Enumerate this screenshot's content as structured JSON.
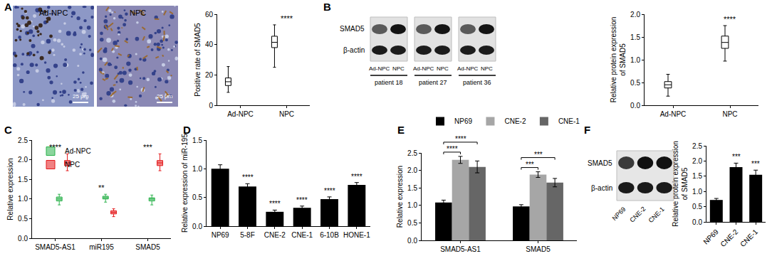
{
  "panel_labels": [
    "A",
    "B",
    "C",
    "D",
    "E",
    "F"
  ],
  "images": {
    "ihc": {
      "labels": [
        "Ad-NPC",
        "NPC"
      ],
      "scale_bar": "25 μm"
    },
    "blot_B": {
      "rows": [
        "SMAD5",
        "β-actin"
      ],
      "lanes": [
        "Ad-NPC",
        "NPC"
      ],
      "groups": [
        "patient 18",
        "patient 27",
        "patient 36"
      ]
    },
    "blot_F": {
      "rows": [
        "SMAD5",
        "β-actin"
      ],
      "lanes": [
        "NP69",
        "CNE-2",
        "CNE-1"
      ]
    }
  },
  "chart_data": [
    {
      "type": "box",
      "y_label": [
        "Positive rate of SMAD5"
      ],
      "categories": [
        "Ad-NPC",
        "NPC"
      ],
      "min": [
        8.5,
        25
      ],
      "q1": [
        13,
        38
      ],
      "median": [
        15.5,
        41.5
      ],
      "q3": [
        18,
        45.5
      ],
      "max": [
        25.5,
        53
      ],
      "color": "#000000",
      "ylim": [
        0,
        60
      ],
      "yticks": [
        0,
        20,
        40,
        60
      ],
      "grid": false,
      "annotations": [
        {
          "category": "NPC",
          "text": "****"
        }
      ]
    },
    {
      "type": "box",
      "y_label": [
        "Relative protein expression",
        "of SMAD5"
      ],
      "categories": [
        "Ad-NPC",
        "NPC"
      ],
      "min": [
        0.2,
        0.97
      ],
      "q1": [
        0.38,
        1.25
      ],
      "median": [
        0.45,
        1.38
      ],
      "q3": [
        0.52,
        1.52
      ],
      "max": [
        0.68,
        1.75
      ],
      "color": "#000000",
      "ylim": [
        0,
        2
      ],
      "yticks": [
        {
          "value": 0,
          "label": "0.0"
        },
        0.5,
        {
          "value": 1,
          "label": "1.0"
        },
        1.5,
        {
          "value": 2,
          "label": "2.0"
        }
      ],
      "grid": false,
      "annotations": [
        {
          "category": "NPC",
          "text": "****"
        }
      ]
    },
    {
      "type": "box",
      "y_label": [
        "Relative expression"
      ],
      "categories": [
        "SMAD5-AS1",
        "miR195",
        "SMAD5"
      ],
      "series": [
        {
          "name": "Ad-NPC",
          "color": "#2bb24c",
          "min": [
            0.85,
            0.92,
            0.85
          ],
          "q1": [
            0.95,
            1.0,
            0.95
          ],
          "median": [
            1.0,
            1.03,
            1.0
          ],
          "q3": [
            1.05,
            1.07,
            1.03
          ],
          "max": [
            1.12,
            1.12,
            1.1
          ]
        },
        {
          "name": "NPC",
          "color": "#e41a1c",
          "min": [
            1.72,
            0.55,
            1.72
          ],
          "q1": [
            1.85,
            0.62,
            1.85
          ],
          "median": [
            1.92,
            0.66,
            1.92
          ],
          "q3": [
            1.98,
            0.7,
            1.98
          ],
          "max": [
            2.15,
            0.75,
            2.15
          ]
        }
      ],
      "ylim": [
        0,
        2.5
      ],
      "yticks": [
        {
          "value": 0,
          "label": "0.0"
        },
        0.5,
        {
          "value": 1,
          "label": "1.0"
        },
        1.5,
        {
          "value": 2,
          "label": "2.0"
        },
        2.5
      ],
      "grid": false,
      "legend": "top left",
      "annotations": [
        {
          "category": "SMAD5-AS1",
          "text": "****"
        },
        {
          "category": "miR195",
          "text": "**"
        },
        {
          "category": "SMAD5",
          "text": "***"
        }
      ]
    },
    {
      "type": "bar",
      "y_label": [
        "Relative expression of miR-195"
      ],
      "categories": [
        "NP69",
        "5-8F",
        "CNE-2",
        "CNE-1",
        "6-10B",
        "HONE-1"
      ],
      "values": [
        1.0,
        0.69,
        0.25,
        0.32,
        0.47,
        0.72
      ],
      "errors": [
        0.07,
        0.05,
        0.03,
        0.03,
        0.04,
        0.04
      ],
      "color": "#000000",
      "ylim": [
        0,
        1.5
      ],
      "yticks": [
        {
          "value": 0,
          "label": "0.0"
        },
        0.5,
        {
          "value": 1,
          "label": "1.0"
        },
        1.5
      ],
      "grid": false,
      "annotations": [
        {
          "category": "5-8F",
          "text": "****"
        },
        {
          "category": "CNE-2",
          "text": "****"
        },
        {
          "category": "CNE-1",
          "text": "****"
        },
        {
          "category": "6-10B",
          "text": "****"
        },
        {
          "category": "HONE-1",
          "text": "****"
        }
      ]
    },
    {
      "type": "bar",
      "y_label": [
        "Relative expression"
      ],
      "categories": [
        "SMAD5-AS1",
        "SMAD5"
      ],
      "series": [
        {
          "name": "NP69",
          "color": "#000000",
          "values": [
            1.08,
            0.97
          ],
          "errors": [
            0.07,
            0.05
          ]
        },
        {
          "name": "CNE-2",
          "color": "#a6a6a6",
          "values": [
            2.3,
            1.88
          ],
          "errors": [
            0.1,
            0.08
          ]
        },
        {
          "name": "CNE-1",
          "color": "#666666",
          "values": [
            2.1,
            1.65
          ],
          "errors": [
            0.17,
            0.12
          ]
        }
      ],
      "ylim": [
        0,
        2.5
      ],
      "yticks": [
        {
          "value": 0,
          "label": "0.0"
        },
        0.5,
        {
          "value": 1,
          "label": "1.0"
        },
        1.5,
        {
          "value": 2,
          "label": "2.0"
        },
        2.5
      ],
      "grid": false,
      "legend": "top",
      "annotations": [
        {
          "category": "SMAD5-AS1",
          "from": "NP69",
          "to": "CNE-2",
          "text": "****"
        },
        {
          "category": "SMAD5-AS1",
          "from": "NP69",
          "to": "CNE-1",
          "text": "****"
        },
        {
          "category": "SMAD5",
          "from": "NP69",
          "to": "CNE-2",
          "text": "***"
        },
        {
          "category": "SMAD5",
          "from": "NP69",
          "to": "CNE-1",
          "text": "***"
        }
      ]
    },
    {
      "type": "bar",
      "y_label": [
        "Relative protein expression",
        "of SMAD5"
      ],
      "categories": [
        "NP69",
        "CNE-2",
        "CNE-1"
      ],
      "values": [
        0.72,
        1.8,
        1.55
      ],
      "errors": [
        0.05,
        0.13,
        0.15
      ],
      "color": "#000000",
      "ylim": [
        0,
        2.5
      ],
      "yticks": [
        {
          "value": 0,
          "label": "0.0"
        },
        0.5,
        {
          "value": 1,
          "label": "1.0"
        },
        1.5,
        {
          "value": 2,
          "label": "2.0"
        },
        2.5
      ],
      "grid": false,
      "annotations": [
        {
          "category": "CNE-2",
          "text": "***"
        },
        {
          "category": "CNE-1",
          "text": "***"
        }
      ]
    }
  ]
}
